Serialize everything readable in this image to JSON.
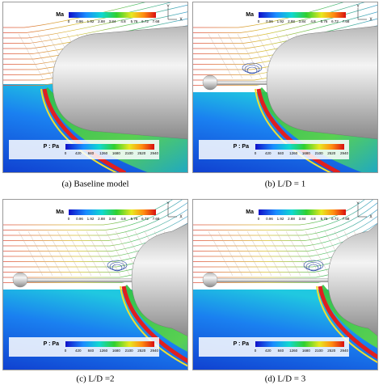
{
  "panels": [
    {
      "ma_label": "Ma",
      "ma_ticks": [
        "0",
        "0.96",
        "1.92",
        "2.88",
        "3.84",
        "4.8",
        "5.76",
        "6.72",
        "7.68"
      ],
      "p_label": "P : Pa",
      "p_ticks": [
        "0",
        "420",
        "840",
        "1260",
        "1680",
        "2100",
        "2520",
        "2940"
      ],
      "axis_y": "Y",
      "axis_x": "X",
      "caption": "(a) Baseline model"
    },
    {
      "ma_label": "Ma",
      "ma_ticks": [
        "0",
        "0.96",
        "1.92",
        "2.88",
        "3.84",
        "4.8",
        "5.76",
        "6.72",
        "7.68"
      ],
      "p_label": "P : Pa",
      "p_ticks": [
        "0",
        "420",
        "840",
        "1260",
        "1680",
        "2100",
        "2520",
        "2940"
      ],
      "axis_y": "Y",
      "axis_x": "X",
      "caption": "(b) L/D = 1"
    },
    {
      "ma_label": "Ma",
      "ma_ticks": [
        "0",
        "0.96",
        "1.92",
        "2.88",
        "3.84",
        "4.8",
        "5.76",
        "6.72",
        "7.68"
      ],
      "p_label": "P : Pa",
      "p_ticks": [
        "0",
        "420",
        "840",
        "1260",
        "1680",
        "2100",
        "2520",
        "2940"
      ],
      "axis_y": "Y",
      "axis_x": "X",
      "caption": "(c) L/D =2"
    },
    {
      "ma_label": "Ma",
      "ma_ticks": [
        "0",
        "0.96",
        "1.92",
        "2.88",
        "3.84",
        "4.8",
        "5.76",
        "6.72",
        "7.68"
      ],
      "p_label": "P : Pa",
      "p_ticks": [
        "0",
        "420",
        "840",
        "1260",
        "1680",
        "2100",
        "2520",
        "2940"
      ],
      "axis_y": "Y",
      "axis_x": "X",
      "caption": "(d) L/D = 3"
    }
  ]
}
